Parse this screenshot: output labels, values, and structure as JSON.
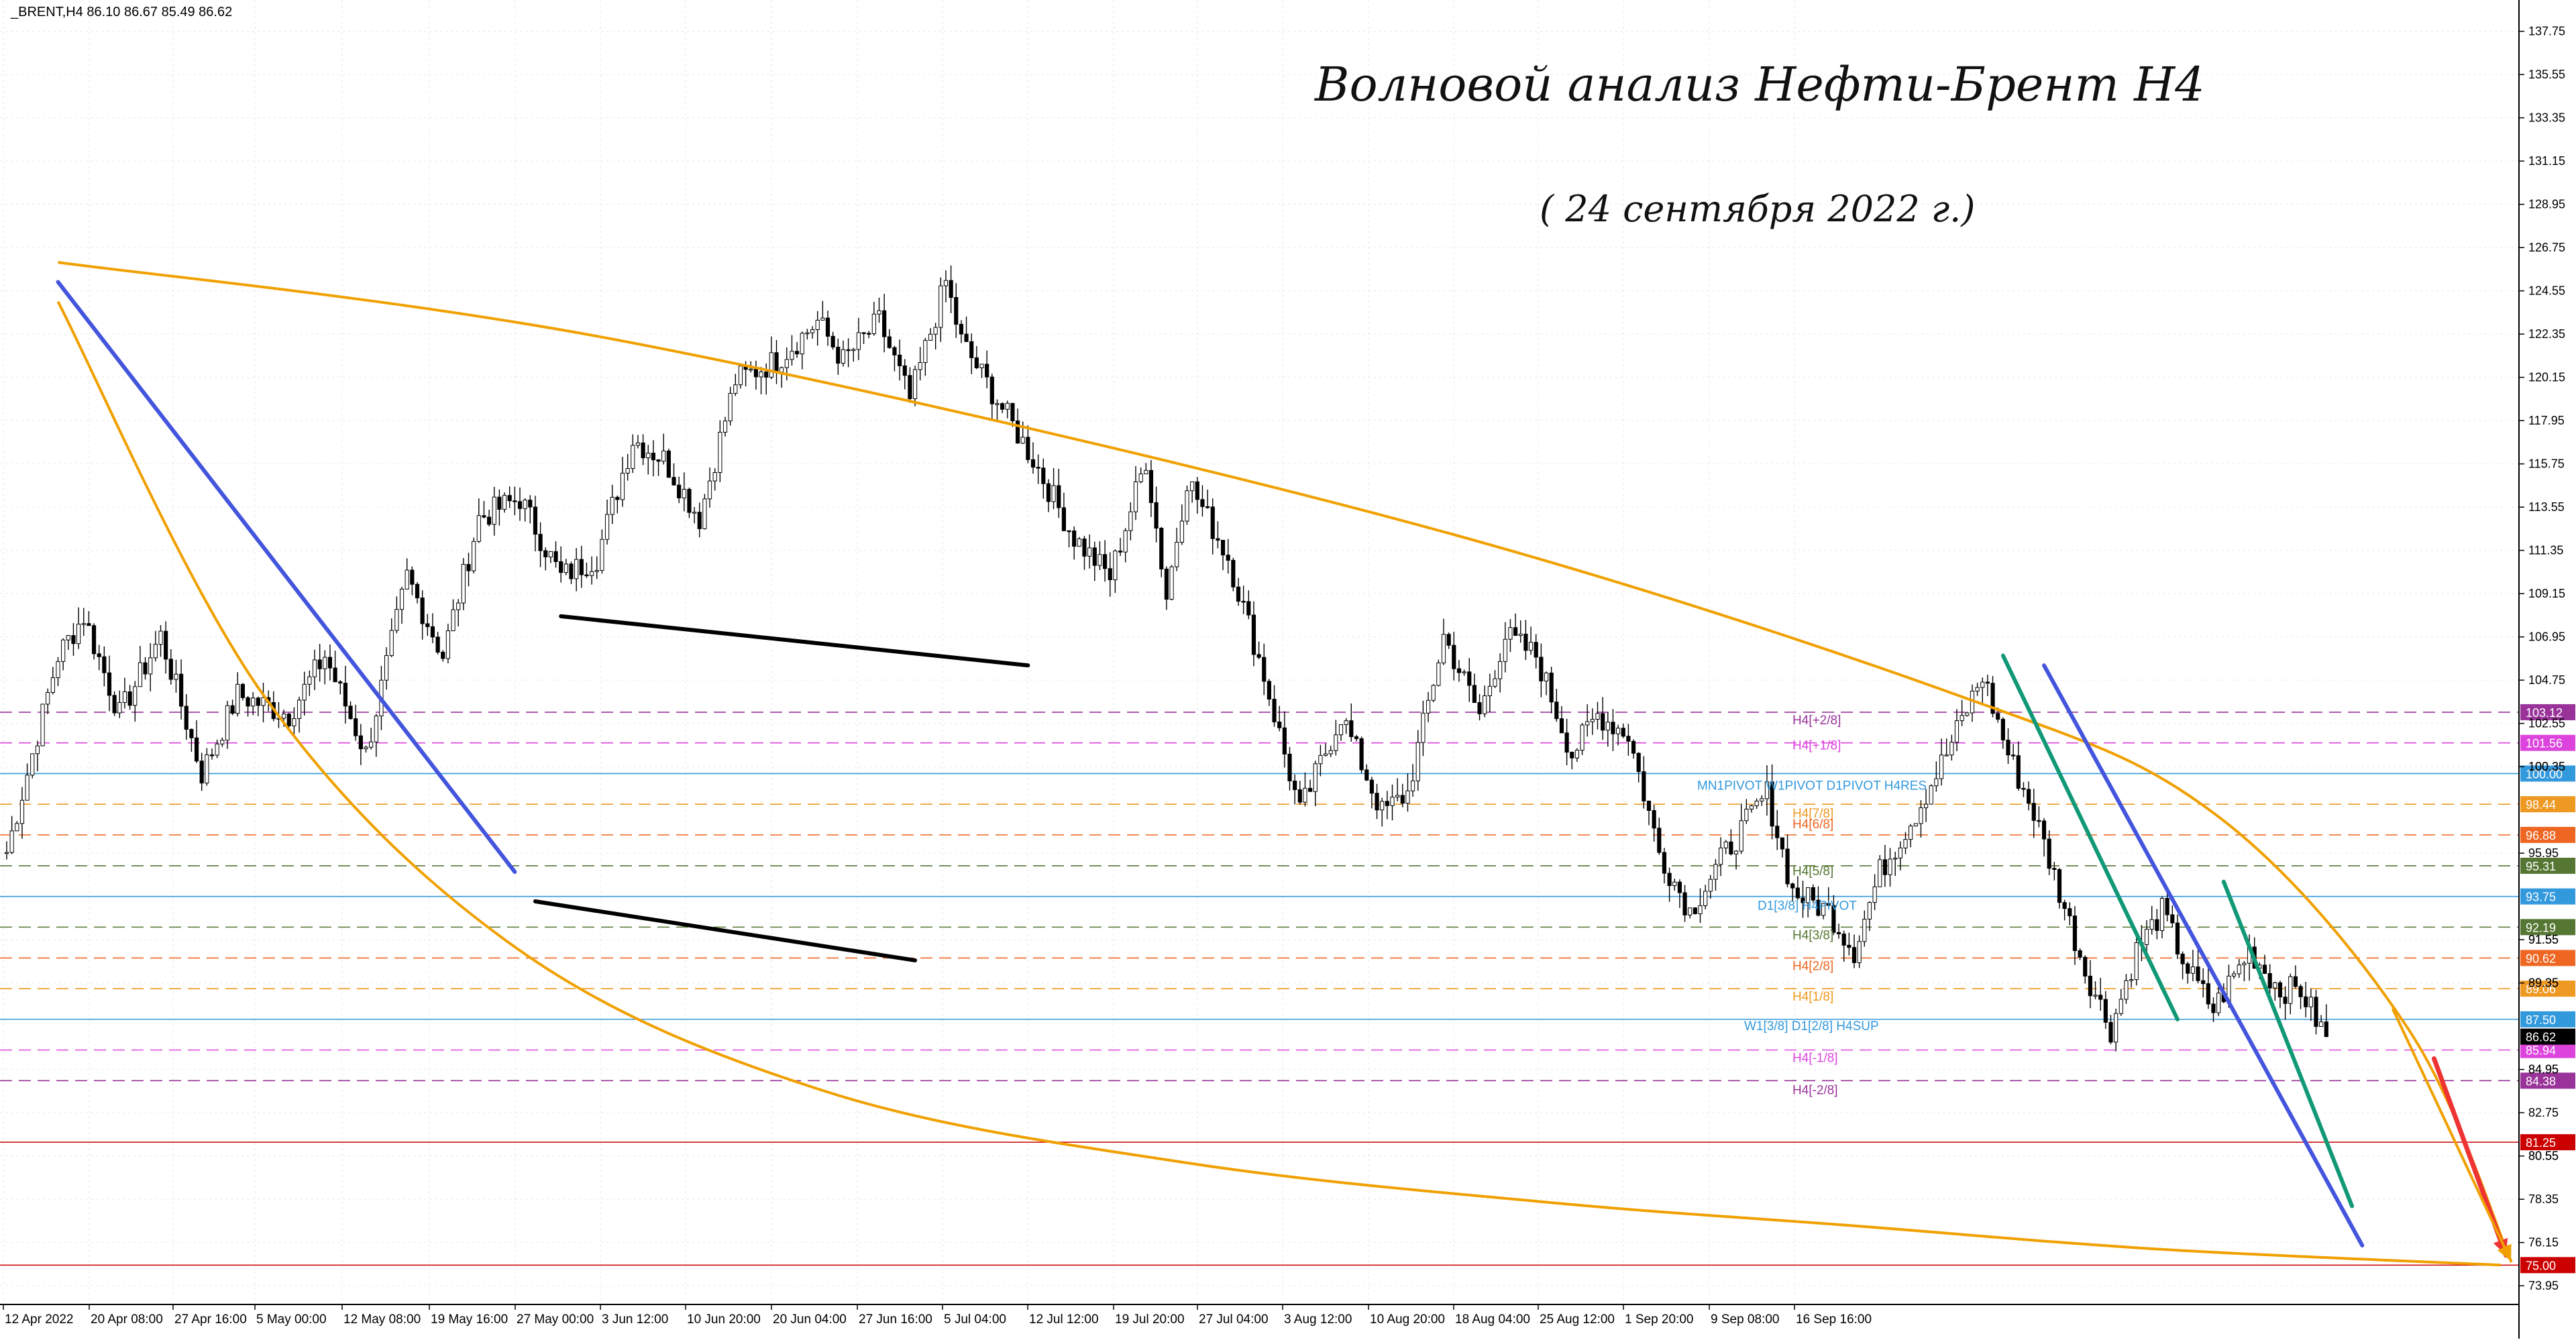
{
  "header": {
    "symbol_line": "_BRENT,H4  86.10 86.67 85.49 86.62"
  },
  "annotations": {
    "title": "Волновой анализ Нефти-Брент H4",
    "subtitle": "( 24 сентября 2022 г.)"
  },
  "colors": {
    "background": "#ffffff",
    "grid": "#e6e6e6",
    "candle": "#000000",
    "blue_channel": "#4455dd",
    "black_channel": "#000000",
    "orange_arc": "#f0a000",
    "green_channel": "#119977",
    "red_arrow": "#ee3333",
    "pivot_blue": "#3399dd",
    "level_red": "#cc0000"
  },
  "chart_data": {
    "type": "candlestick",
    "symbol": "_BRENT",
    "timeframe": "H4",
    "ohlc_last": {
      "open": 86.1,
      "high": 86.67,
      "low": 85.49,
      "close": 86.62
    },
    "ylim": [
      73.0,
      139.0
    ],
    "y_ticks": [
      137.75,
      135.55,
      133.35,
      131.15,
      128.95,
      126.75,
      124.55,
      122.35,
      120.15,
      117.95,
      115.75,
      113.55,
      111.35,
      109.15,
      106.95,
      104.75,
      102.55,
      100.35,
      95.95,
      91.55,
      89.35,
      84.95,
      82.75,
      80.55,
      78.35,
      76.15,
      73.95
    ],
    "x_tick_labels": [
      "12 Apr 2022",
      "20 Apr 08:00",
      "27 Apr 16:00",
      "5 May 00:00",
      "12 May 08:00",
      "19 May 16:00",
      "27 May 00:00",
      "3 Jun 12:00",
      "10 Jun 20:00",
      "20 Jun 04:00",
      "27 Jun 16:00",
      "5 Jul 04:00",
      "12 Jul 12:00",
      "19 Jul 20:00",
      "27 Jul 04:00",
      "3 Aug 12:00",
      "10 Aug 20:00",
      "18 Aug 04:00",
      "25 Aug 12:00",
      "1 Sep 20:00",
      "9 Sep 08:00",
      "16 Sep 16:00"
    ],
    "close_path": [
      [
        0,
        96
      ],
      [
        10,
        106
      ],
      [
        15,
        108
      ],
      [
        22,
        103
      ],
      [
        30,
        107
      ],
      [
        38,
        100
      ],
      [
        45,
        104
      ],
      [
        55,
        103
      ],
      [
        62,
        106
      ],
      [
        70,
        101
      ],
      [
        78,
        110
      ],
      [
        85,
        106
      ],
      [
        92,
        113
      ],
      [
        100,
        114
      ],
      [
        108,
        110
      ],
      [
        115,
        111
      ],
      [
        122,
        117
      ],
      [
        128,
        116
      ],
      [
        135,
        113
      ],
      [
        142,
        120
      ],
      [
        150,
        121
      ],
      [
        158,
        123
      ],
      [
        163,
        121
      ],
      [
        170,
        123
      ],
      [
        176,
        119
      ],
      [
        183,
        125
      ],
      [
        186,
        122
      ],
      [
        193,
        119
      ],
      [
        200,
        116
      ],
      [
        208,
        112
      ],
      [
        215,
        110
      ],
      [
        222,
        116
      ],
      [
        226,
        109
      ],
      [
        230,
        115
      ],
      [
        238,
        111
      ],
      [
        245,
        105
      ],
      [
        252,
        98
      ],
      [
        260,
        103
      ],
      [
        268,
        98
      ],
      [
        273,
        99
      ],
      [
        280,
        107
      ],
      [
        287,
        103
      ],
      [
        292,
        107
      ],
      [
        298,
        106
      ],
      [
        305,
        101
      ],
      [
        310,
        103
      ],
      [
        316,
        102
      ],
      [
        322,
        96
      ],
      [
        328,
        93
      ],
      [
        335,
        96
      ],
      [
        343,
        99
      ],
      [
        348,
        94
      ],
      [
        355,
        93
      ],
      [
        360,
        91
      ],
      [
        365,
        95
      ],
      [
        372,
        98
      ],
      [
        378,
        101
      ],
      [
        385,
        105
      ],
      [
        390,
        101
      ],
      [
        395,
        98
      ],
      [
        400,
        94
      ],
      [
        405,
        90
      ],
      [
        410,
        87
      ],
      [
        415,
        91
      ],
      [
        420,
        93
      ],
      [
        425,
        90
      ],
      [
        430,
        88
      ],
      [
        437,
        91
      ],
      [
        443,
        89
      ],
      [
        447,
        89
      ],
      [
        450,
        87.5
      ],
      [
        452,
        86.62
      ]
    ],
    "dated_lines": [
      {
        "name": "blue-channel-upper",
        "points": [
          [
            10,
            125
          ],
          [
            99,
            95
          ]
        ]
      },
      {
        "name": "blue-channel-lower",
        "points": [
          [
            397,
            105.5
          ],
          [
            459,
            76
          ]
        ]
      },
      {
        "name": "black-channel-upper",
        "points": [
          [
            108,
            108
          ],
          [
            199,
            105.5
          ]
        ]
      },
      {
        "name": "black-channel-lower",
        "points": [
          [
            103,
            93.5
          ],
          [
            177,
            90.5
          ]
        ]
      },
      {
        "name": "green-channel-upper",
        "points": [
          [
            389,
            106
          ],
          [
            423,
            87.5
          ]
        ]
      },
      {
        "name": "green-channel-lower",
        "points": [
          [
            432,
            94.5
          ],
          [
            457,
            78
          ]
        ]
      }
    ],
    "arrows": [
      {
        "name": "red-arrow",
        "points": [
          [
            473,
            85.5
          ],
          [
            487,
            75.5
          ]
        ]
      },
      {
        "name": "orange-arrow",
        "points": [
          [
            465,
            88
          ],
          [
            488,
            75.2
          ]
        ]
      }
    ],
    "arcs": [
      {
        "name": "orange-arc-upper",
        "points": [
          [
            10,
            126
          ],
          [
            120,
            122
          ],
          [
            270,
            113
          ],
          [
            380,
            104
          ],
          [
            430,
            98
          ],
          [
            468,
            87
          ],
          [
            488,
            75.2
          ]
        ]
      },
      {
        "name": "orange-arc-lower",
        "points": [
          [
            10,
            124
          ],
          [
            50,
            104
          ],
          [
            100,
            91
          ],
          [
            160,
            83.8
          ],
          [
            230,
            80.2
          ],
          [
            300,
            78.2
          ],
          [
            360,
            77
          ],
          [
            420,
            75.8
          ],
          [
            486,
            75
          ]
        ]
      }
    ],
    "horizontal_levels": [
      {
        "value": 103.12,
        "label": "103.12",
        "style": "dashed",
        "color": "#993399",
        "name": "H4[+2/8]"
      },
      {
        "value": 101.56,
        "label": "101.56",
        "style": "dashed",
        "color": "#dd44dd",
        "name": "H4[+1/8]"
      },
      {
        "value": 100.0,
        "label": "100.00",
        "style": "solid",
        "color": "#3399dd",
        "name": "MN1PIVOT W1PIVOT D1PIVOT H4RES"
      },
      {
        "value": 98.44,
        "label": "98.44",
        "style": "dashed",
        "color": "#ee9922",
        "name": "H4[7/8]"
      },
      {
        "value": 96.88,
        "label": "96.88",
        "style": "dashed",
        "color": "#ee6622",
        "name": "H4[6/8]"
      },
      {
        "value": 95.31,
        "label": "95.31",
        "style": "dashed",
        "color": "#557733",
        "name": "H4[5/8]"
      },
      {
        "value": 93.75,
        "label": "93.75",
        "style": "solid",
        "color": "#3399dd",
        "name": "D1[3/8] H4PIVOT"
      },
      {
        "value": 92.19,
        "label": "92.19",
        "style": "dashed",
        "color": "#557733",
        "name": "H4[3/8]"
      },
      {
        "value": 90.62,
        "label": "90.62",
        "style": "dashed",
        "color": "#ee6622",
        "name": "H4[2/8]"
      },
      {
        "value": 89.06,
        "label": "89.06",
        "style": "dashed",
        "color": "#ee9922",
        "name": "H4[1/8]"
      },
      {
        "value": 87.5,
        "label": "87.50",
        "style": "solid",
        "color": "#3399dd",
        "name": "W1[3/8] D1[2/8] H4SUP"
      },
      {
        "value": 85.94,
        "label": "85.94",
        "style": "dashed",
        "color": "#dd44dd",
        "name": "H4[-1/8]"
      },
      {
        "value": 84.38,
        "label": "84.38",
        "style": "dashed",
        "color": "#993399",
        "name": "H4[-2/8]"
      },
      {
        "value": 81.25,
        "label": "81.25",
        "style": "solid",
        "color": "#cc0000",
        "name": ""
      },
      {
        "value": 75.0,
        "label": "75.00",
        "style": "solid",
        "color": "#cc0000",
        "name": ""
      }
    ],
    "current_price": {
      "value": 86.62,
      "label": "86.62"
    },
    "extra_axis_labels": [
      {
        "value": 100.35,
        "label": "100.35"
      },
      {
        "value": 91.55,
        "label": "91.55"
      },
      {
        "value": 89.35,
        "label": "89.35"
      },
      {
        "value": 84.95,
        "label": "84.95"
      },
      {
        "value": 80.55,
        "label": "80.55"
      }
    ]
  }
}
